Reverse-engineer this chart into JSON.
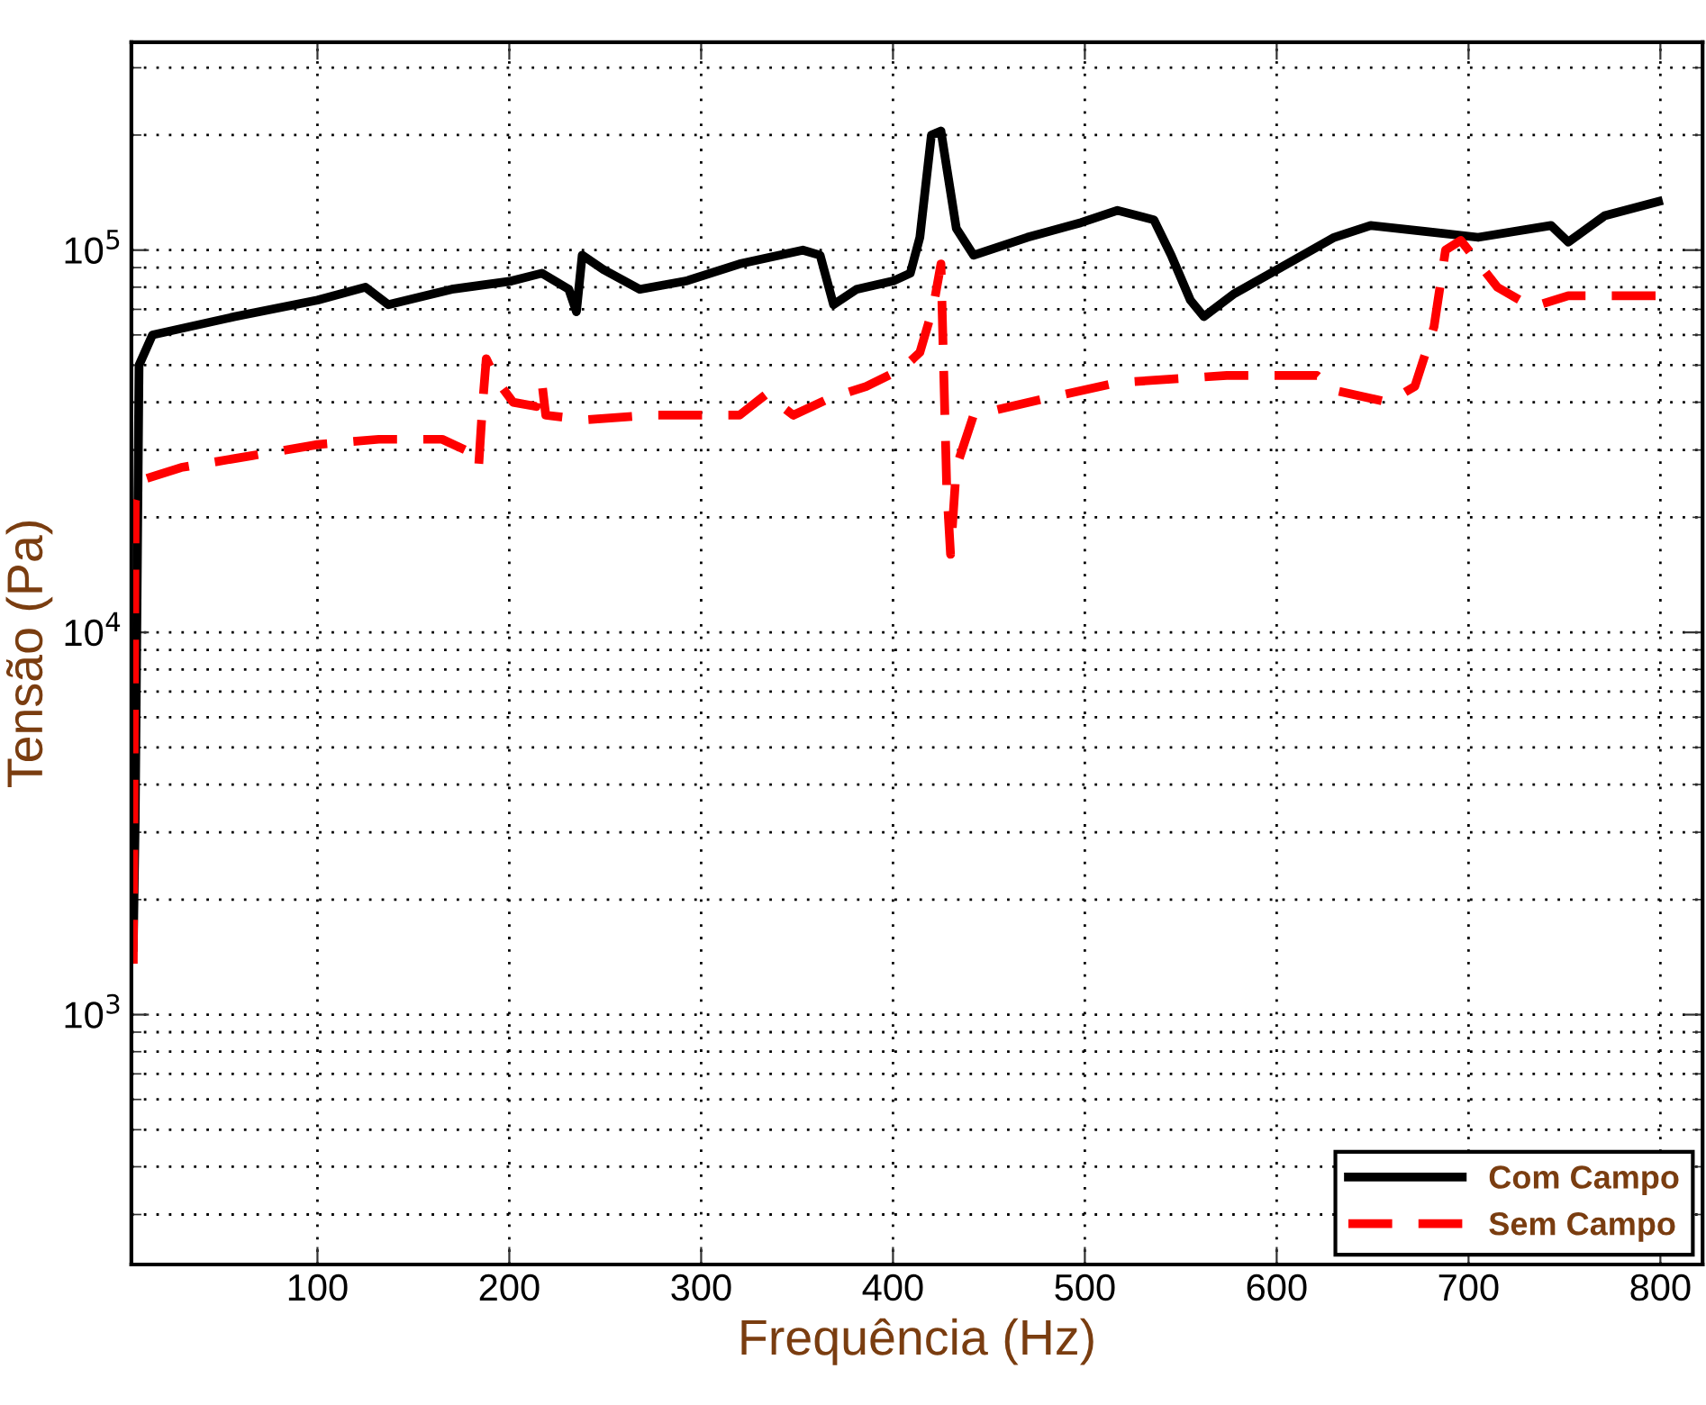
{
  "chart_data": {
    "type": "line",
    "xlabel": "Frequência (Hz)",
    "ylabel": "Tensão (Pa)",
    "log": "y",
    "xlim": [
      3,
      822
    ],
    "ylim": [
      222,
      350000
    ],
    "xticks": [
      100,
      200,
      300,
      400,
      500,
      600,
      700,
      800
    ],
    "yticks": [
      {
        "value": 1000,
        "label": "10$^{3}$"
      },
      {
        "value": 10000,
        "label": "10$^{4}$"
      },
      {
        "value": 100000,
        "label": "10$^{5}$"
      }
    ],
    "grid": true,
    "legend": "bottom right",
    "series": [
      {
        "name": "Com Campo",
        "color": "#000000",
        "line_style": "solid",
        "x": [
          4,
          5,
          7,
          14,
          57,
          100,
          125,
          137,
          170,
          201,
          217,
          231,
          235,
          238,
          249,
          268,
          292,
          320,
          353,
          362,
          369,
          381,
          400,
          409,
          414,
          420,
          425,
          433,
          442,
          470,
          498,
          517,
          536,
          545,
          555,
          562,
          578,
          602,
          630,
          649,
          677,
          705,
          743,
          752,
          771,
          799
        ],
        "values": [
          1500,
          3200,
          50000,
          60000,
          67000,
          74000,
          80000,
          72000,
          79000,
          83000,
          87000,
          79000,
          69000,
          97000,
          89000,
          79000,
          83000,
          92000,
          100000,
          97000,
          72000,
          79000,
          83000,
          87000,
          108000,
          200000,
          205000,
          114000,
          97000,
          108000,
          118000,
          127000,
          120000,
          97000,
          74000,
          67000,
          77000,
          90000,
          108000,
          116000,
          112000,
          108000,
          116000,
          105000,
          123000,
          134000
        ]
      },
      {
        "name": "Sem Campo",
        "color": "#ff0000",
        "line_style": "dashed",
        "x": [
          4,
          5,
          8,
          29,
          66,
          100,
          132,
          165,
          177,
          184,
          186,
          188,
          193,
          202,
          214,
          217,
          219,
          240,
          273,
          320,
          334,
          348,
          367,
          386,
          405,
          414,
          421,
          425,
          428,
          430,
          433,
          442,
          480,
          517,
          574,
          621,
          630,
          658,
          672,
          682,
          688,
          696,
          715,
          733,
          752,
          799
        ],
        "values": [
          1360,
          22000,
          25000,
          27000,
          29000,
          31000,
          32000,
          32000,
          30000,
          27000,
          39000,
          52000,
          46000,
          40000,
          39000,
          45000,
          37000,
          36000,
          37000,
          37000,
          42000,
          37000,
          41000,
          44000,
          49000,
          54000,
          71000,
          92000,
          24000,
          16000,
          27000,
          37000,
          41000,
          45000,
          47000,
          47000,
          43000,
          40000,
          44000,
          63000,
          100000,
          106000,
          80000,
          71000,
          76000,
          76000
        ]
      }
    ]
  }
}
